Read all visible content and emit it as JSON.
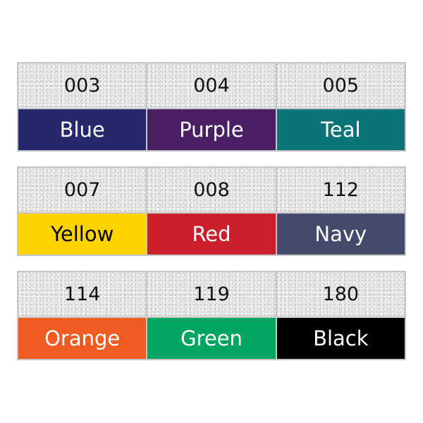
{
  "swatches": [
    {
      "code": "003",
      "name": "Blue",
      "color": "#25286a",
      "text_color": "#ffffff"
    },
    {
      "code": "004",
      "name": "Purple",
      "color": "#4a1f63",
      "text_color": "#ffffff"
    },
    {
      "code": "005",
      "name": "Teal",
      "color": "#0a7478",
      "text_color": "#ffffff"
    },
    {
      "code": "007",
      "name": "Yellow",
      "color": "#fdd400",
      "text_color": "#000000"
    },
    {
      "code": "008",
      "name": "Red",
      "color": "#c9202b",
      "text_color": "#ffffff"
    },
    {
      "code": "112",
      "name": "Navy",
      "color": "#434a6c",
      "text_color": "#ffffff"
    },
    {
      "code": "114",
      "name": "Orange",
      "color": "#f05a23",
      "text_color": "#ffffff"
    },
    {
      "code": "119",
      "name": "Green",
      "color": "#00a65f",
      "text_color": "#ffffff"
    },
    {
      "code": "180",
      "name": "Black",
      "color": "#000000",
      "text_color": "#ffffff"
    }
  ]
}
